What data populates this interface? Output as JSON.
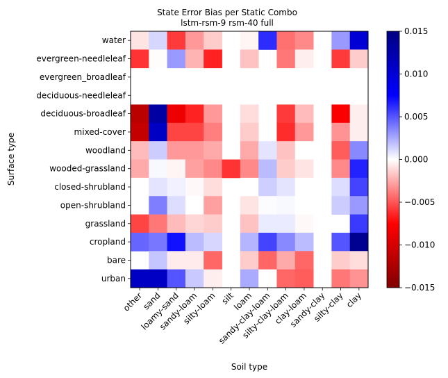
{
  "chart_data": {
    "type": "heatmap",
    "title": "State Error Bias per Static Combo",
    "subtitle": "lstm-rsm-9 rsm-40 full",
    "xlabel": "Soil type",
    "ylabel": "Surface type",
    "x_categories": [
      "other",
      "sand",
      "loamy-sand",
      "sandy-loam",
      "silty-loam",
      "silt",
      "loam",
      "sandy-clay-loam",
      "silty-clay-loam",
      "clay-loam",
      "sandy-clay",
      "silty-clay",
      "clay"
    ],
    "y_categories": [
      "water",
      "evergreen-needleleaf",
      "evergreen_broadleaf",
      "deciduous-needleleaf",
      "deciduous-broadleaf",
      "mixed-cover",
      "woodland",
      "wooded-grassland",
      "closed-shrubland",
      "open-shrubland",
      "grassland",
      "cropland",
      "bare",
      "urban"
    ],
    "colormap": "seismic_r",
    "colorbar": {
      "min": -0.015,
      "max": 0.015,
      "ticks": [
        0.015,
        0.01,
        0.005,
        0.0,
        -0.005,
        -0.01,
        -0.015
      ],
      "tick_labels": [
        "0.015",
        "0.010",
        "0.005",
        "0.000",
        "−0.005",
        "−0.010",
        "−0.015"
      ]
    },
    "values": [
      [
        -0.0008,
        0.0012,
        -0.0058,
        -0.003,
        -0.0015,
        null,
        -0.0003,
        0.0062,
        -0.0042,
        -0.0035,
        null,
        0.003,
        0.01
      ],
      [
        -0.006,
        -0.0001,
        0.003,
        -0.0022,
        -0.0065,
        null,
        -0.0018,
        null,
        -0.004,
        -0.0005,
        null,
        -0.0058,
        -0.0015
      ],
      [
        null,
        null,
        null,
        null,
        null,
        null,
        null,
        null,
        null,
        null,
        null,
        null,
        null
      ],
      [
        null,
        null,
        null,
        null,
        null,
        null,
        null,
        null,
        null,
        null,
        null,
        null,
        null
      ],
      [
        -0.0115,
        0.013,
        -0.0085,
        -0.0065,
        -0.003,
        null,
        -0.001,
        null,
        -0.0058,
        -0.002,
        null,
        -0.0078,
        -0.0005
      ],
      [
        -0.011,
        0.011,
        -0.0055,
        -0.0055,
        -0.0038,
        null,
        -0.0015,
        null,
        -0.0062,
        -0.003,
        null,
        -0.0032,
        -0.0005
      ],
      [
        -0.002,
        0.0015,
        -0.003,
        -0.003,
        -0.0025,
        null,
        -0.0025,
        0.0008,
        -0.0018,
        0.0,
        null,
        -0.0048,
        0.0035
      ],
      [
        -0.0025,
        0.0002,
        -0.0003,
        -0.0028,
        -0.0035,
        -0.006,
        -0.0035,
        0.002,
        -0.0015,
        -0.0008,
        null,
        -0.0035,
        0.0065
      ],
      [
        0.0,
        0.0008,
        0.0004,
        -0.0002,
        -0.001,
        null,
        0.0,
        0.0014,
        0.0008,
        0.0,
        null,
        0.001,
        0.0055
      ],
      [
        0.0,
        0.0038,
        0.001,
        0.0,
        -0.0028,
        null,
        -0.0008,
        0.0001,
        0.0002,
        0.0,
        null,
        0.0015,
        0.003
      ],
      [
        -0.0055,
        -0.004,
        -0.002,
        -0.0012,
        -0.0015,
        null,
        -0.0018,
        0.0006,
        0.0006,
        -0.0002,
        null,
        null,
        0.0058
      ],
      [
        0.0045,
        0.004,
        0.007,
        0.002,
        0.0012,
        null,
        0.0022,
        0.0055,
        0.0035,
        0.002,
        null,
        0.005,
        0.014
      ],
      [
        null,
        0.0017,
        -0.0006,
        -0.0006,
        -0.0045,
        null,
        -0.0015,
        -0.0045,
        -0.0025,
        -0.0045,
        null,
        -0.0015,
        -0.001
      ],
      [
        0.011,
        0.011,
        0.005,
        0.0016,
        -0.0005,
        null,
        0.0025,
        0.0,
        -0.0045,
        -0.0048,
        null,
        -0.004,
        -0.0032
      ]
    ]
  }
}
